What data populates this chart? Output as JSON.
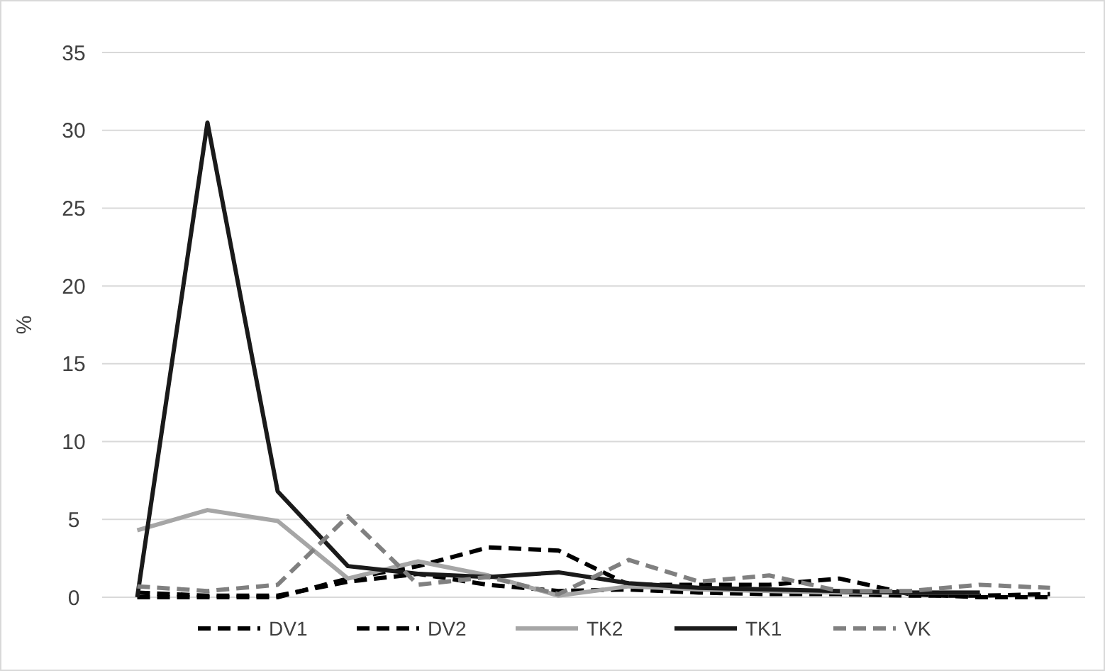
{
  "chart_data": {
    "type": "line",
    "ylabel": "%",
    "categories": [
      null,
      null,
      null,
      null,
      null,
      null,
      null,
      null,
      null,
      null,
      null,
      null,
      null,
      null
    ],
    "ylim": [
      0,
      35
    ],
    "yticks": [
      0,
      5,
      10,
      15,
      20,
      25,
      30,
      35
    ],
    "grid": "y",
    "legend": "bottom",
    "series": [
      {
        "name": "DV1",
        "color": "#000000",
        "line_style": "dashed",
        "values": [
          0.3,
          0.1,
          0.1,
          1.0,
          1.5,
          0.8,
          0.4,
          0.5,
          0.3,
          0.2,
          0.2,
          0.1,
          0.1,
          0.2
        ]
      },
      {
        "name": "DV2",
        "color": "#000000",
        "line_style": "dashed",
        "values": [
          0,
          0,
          0,
          1.2,
          2.0,
          3.2,
          3.0,
          0.8,
          0.8,
          0.8,
          1.2,
          0.2,
          0,
          0
        ]
      },
      {
        "name": "TK2",
        "color": "#a6a6a6",
        "line_style": "solid",
        "values": [
          4.3,
          5.6,
          4.9,
          1.2,
          2.3,
          1.4,
          0.1,
          0.7,
          0.5,
          0.4,
          0.3,
          0.3,
          0.3,
          null
        ]
      },
      {
        "name": "TK1",
        "color": "#1a1a1a",
        "line_style": "solid",
        "values": [
          0,
          30.5,
          6.8,
          2.0,
          1.5,
          1.3,
          1.6,
          0.9,
          0.6,
          0.5,
          0.4,
          0.3,
          0.3,
          null
        ]
      },
      {
        "name": "VK",
        "color": "#808080",
        "line_style": "dashed",
        "values": [
          0.7,
          0.4,
          0.8,
          5.2,
          0.8,
          1.3,
          0.2,
          2.4,
          1.0,
          1.4,
          0.4,
          0.4,
          0.8,
          0.6
        ]
      }
    ]
  }
}
